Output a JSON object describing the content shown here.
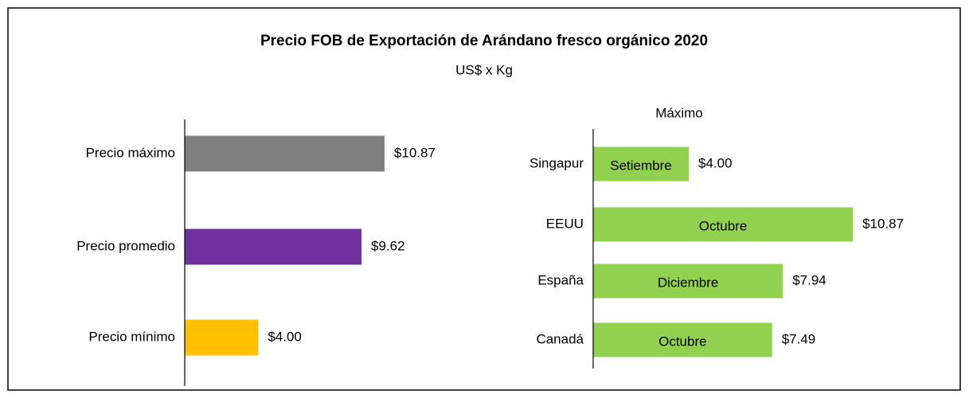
{
  "title": "Precio FOB de Exportación de Arándano fresco orgánico  2020",
  "subtitle": "US$ x Kg",
  "chart_data": [
    {
      "type": "barh",
      "categories": [
        "Precio máximo",
        "Precio promedio",
        "Precio mínimo"
      ],
      "values": [
        10.87,
        9.62,
        4.0
      ],
      "value_labels": [
        "$10.87",
        "$9.62",
        "$4.00"
      ],
      "colors": [
        "#808080",
        "#7030a0",
        "#ffc000"
      ],
      "xlim": [
        0,
        12
      ]
    },
    {
      "type": "barh",
      "title": "Máximo",
      "categories": [
        "Singapur",
        "EEUU",
        "España",
        "Canadá"
      ],
      "values": [
        4.0,
        10.87,
        7.94,
        7.49
      ],
      "value_labels": [
        "$4.00",
        "$10.87",
        "$7.94",
        "$7.49"
      ],
      "bar_labels": [
        "Setiembre",
        "Octubre",
        "Diciembre",
        "Octubre"
      ],
      "colors": [
        "#92d050",
        "#92d050",
        "#92d050",
        "#92d050"
      ],
      "xlim": [
        0,
        12
      ]
    }
  ]
}
